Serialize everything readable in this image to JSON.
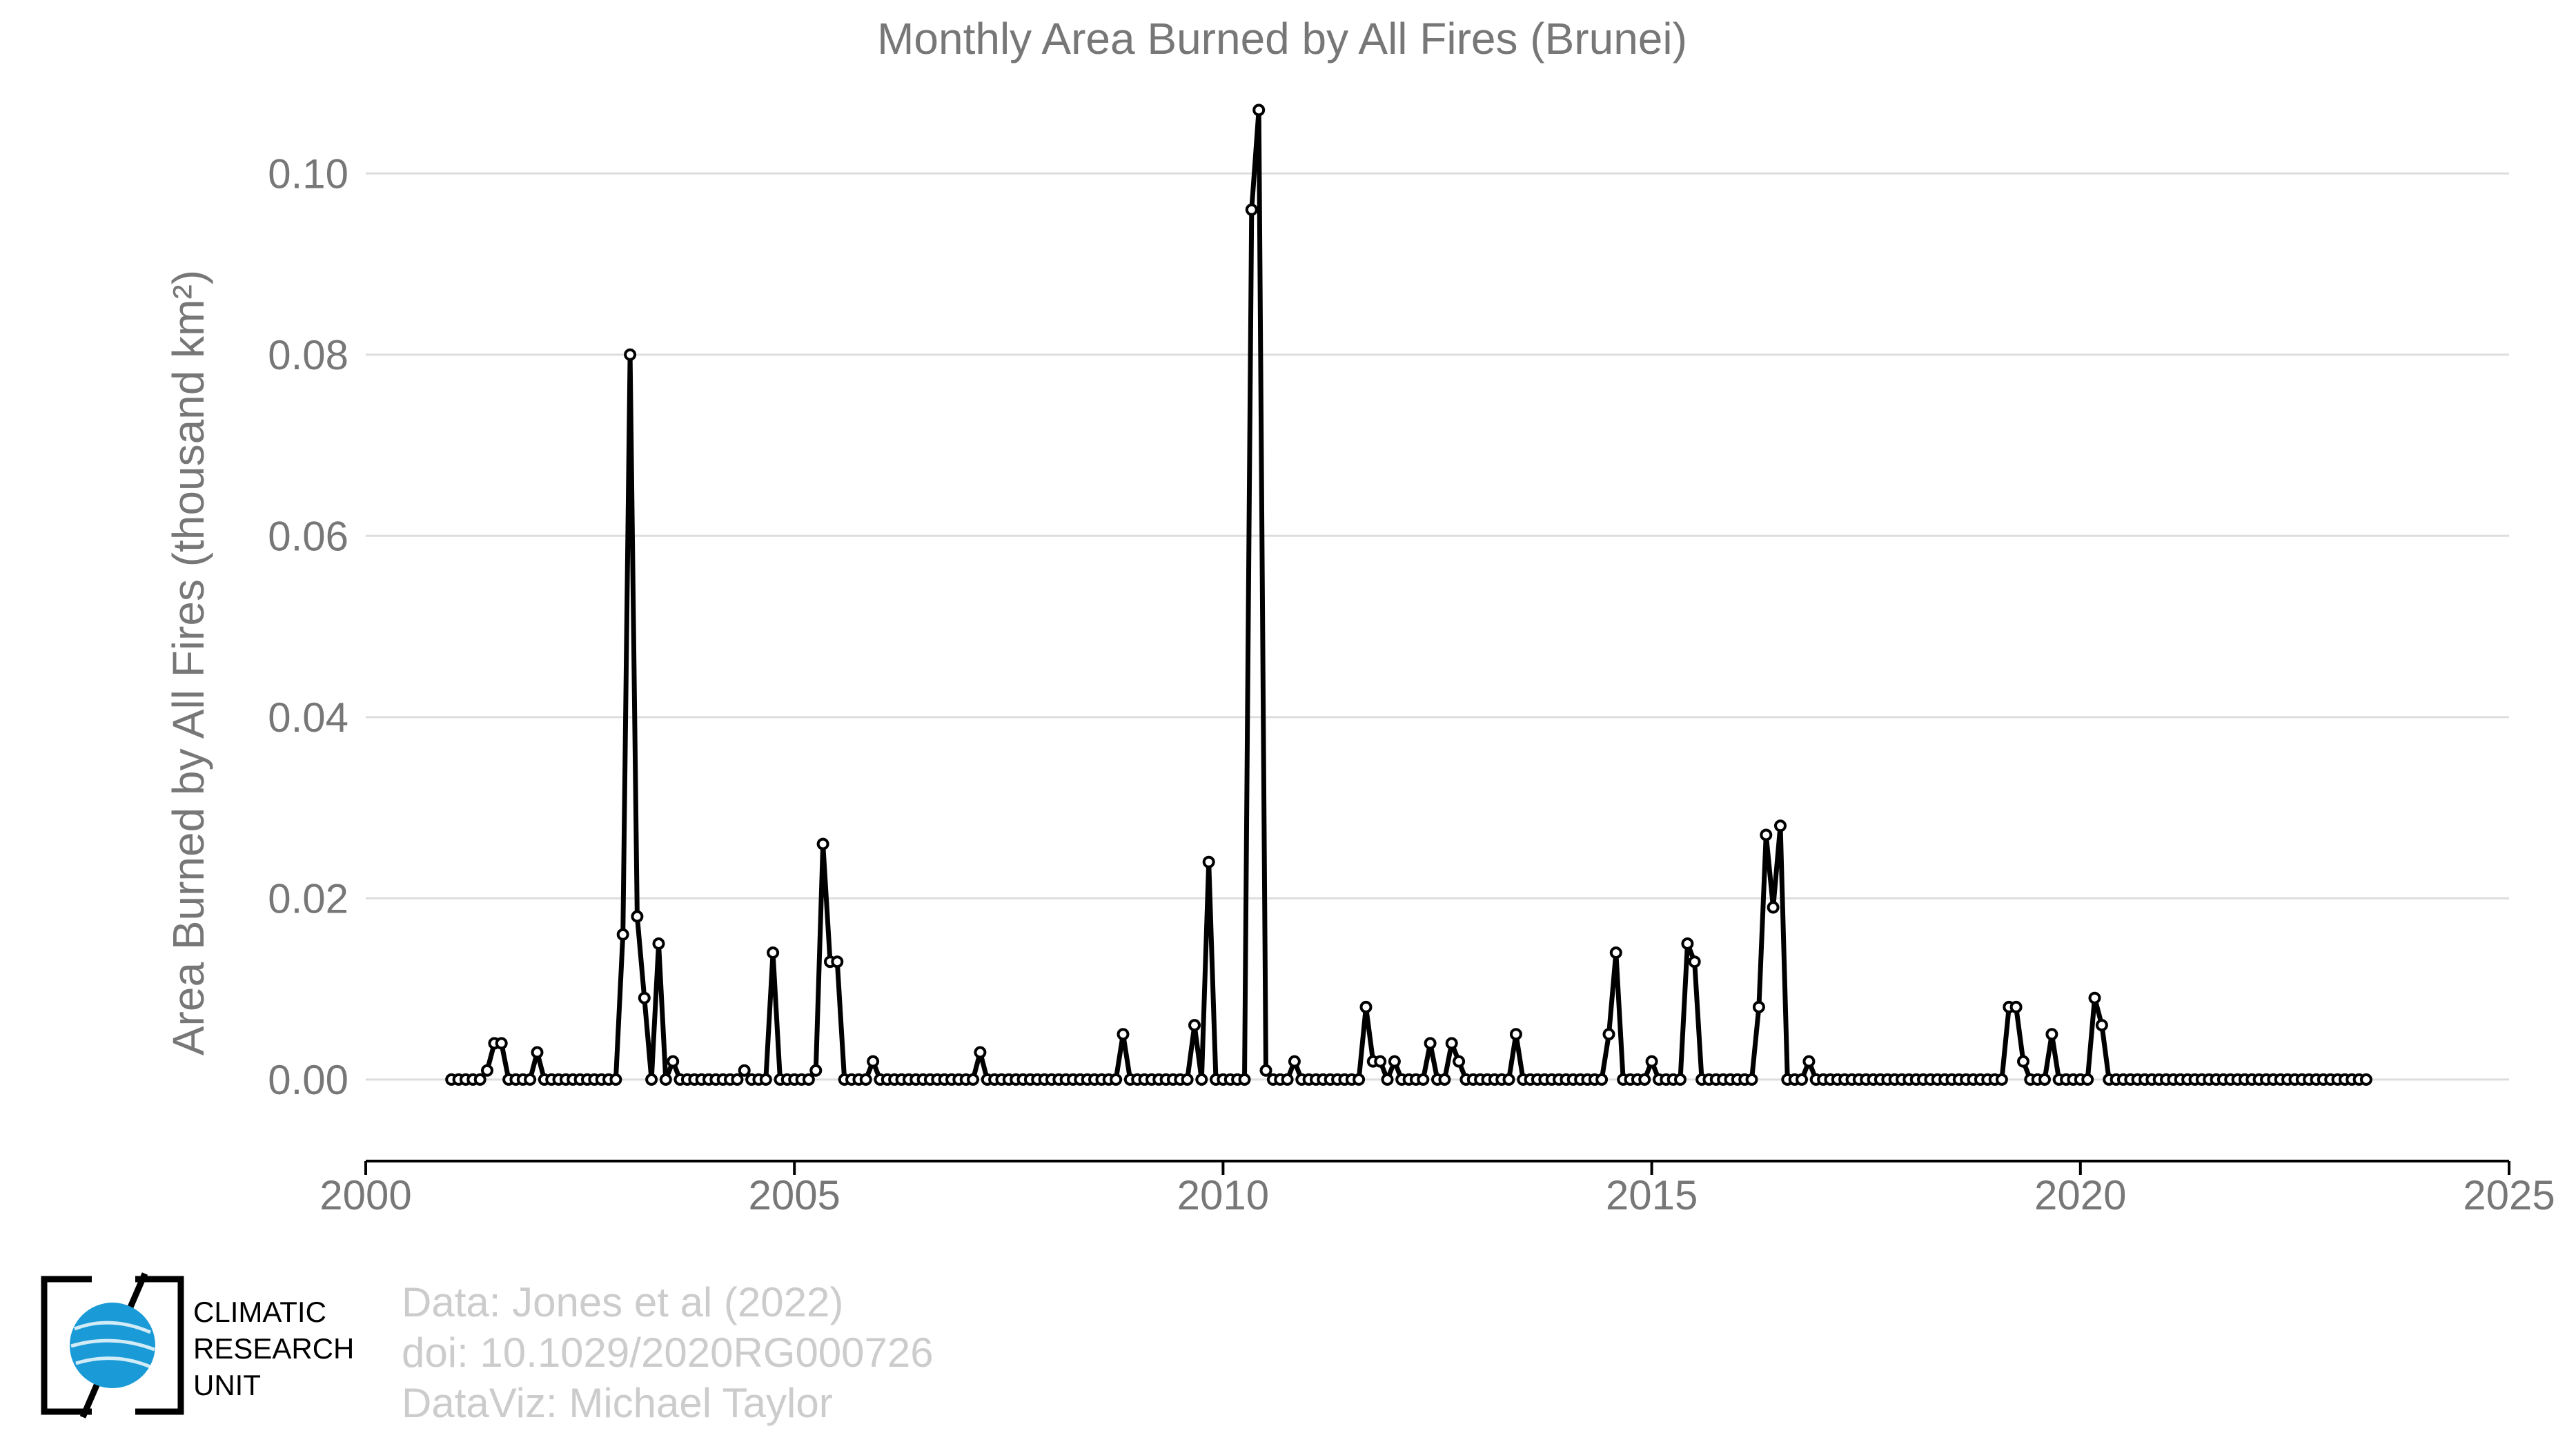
{
  "chart_data": {
    "type": "line",
    "title": "Monthly Area Burned by All Fires (Brunei)",
    "ylabel": "Area Burned by All Fires (thousand km²)",
    "xlabel": "",
    "xlim": [
      2000,
      2025
    ],
    "ylim": [
      -0.009,
      0.11
    ],
    "xticks": [
      2000,
      2005,
      2010,
      2015,
      2020,
      2025
    ],
    "xtick_labels": [
      "2000",
      "2005",
      "2010",
      "2015",
      "2020",
      "2025"
    ],
    "yticks": [
      0.0,
      0.02,
      0.04,
      0.06,
      0.08,
      0.1
    ],
    "ytick_labels": [
      "0.00",
      "0.02",
      "0.04",
      "0.06",
      "0.08",
      "0.10"
    ],
    "grid": "horizontal",
    "start": "2001-01",
    "frequency": "monthly",
    "series": [
      {
        "values": [
          0,
          0,
          0,
          0,
          0,
          0.001,
          0.004,
          0.004,
          0,
          0,
          0,
          0,
          0.003,
          0,
          0,
          0,
          0,
          0,
          0,
          0,
          0,
          0,
          0,
          0,
          0.016,
          0.08,
          0.018,
          0.009,
          0,
          0.015,
          0,
          0.002,
          0,
          0,
          0,
          0,
          0,
          0,
          0,
          0,
          0,
          0.001,
          0,
          0,
          0,
          0.014,
          0,
          0,
          0,
          0,
          0,
          0.001,
          0.026,
          0.013,
          0.013,
          0,
          0,
          0,
          0,
          0.002,
          0,
          0,
          0,
          0,
          0,
          0,
          0,
          0,
          0,
          0,
          0,
          0,
          0,
          0,
          0.003,
          0,
          0,
          0,
          0,
          0,
          0,
          0,
          0,
          0,
          0,
          0,
          0,
          0,
          0,
          0,
          0,
          0,
          0,
          0,
          0.005,
          0,
          0,
          0,
          0,
          0,
          0,
          0,
          0,
          0,
          0.006,
          0,
          0.024,
          0,
          0,
          0,
          0,
          0,
          0.096,
          0.107,
          0.001,
          0,
          0,
          0,
          0.002,
          0,
          0,
          0,
          0,
          0,
          0,
          0,
          0,
          0,
          0.008,
          0.002,
          0.002,
          0,
          0.002,
          0,
          0,
          0,
          0,
          0.004,
          0,
          0,
          0.004,
          0.002,
          0,
          0,
          0,
          0,
          0,
          0,
          0,
          0.005,
          0,
          0,
          0,
          0,
          0,
          0,
          0,
          0,
          0,
          0,
          0,
          0,
          0.005,
          0.014,
          0,
          0,
          0,
          0,
          0.002,
          0,
          0,
          0,
          0,
          0.015,
          0.013,
          0,
          0,
          0,
          0,
          0,
          0,
          0,
          0,
          0.008,
          0.027,
          0.019,
          0.028,
          0,
          0,
          0,
          0.002,
          0,
          0,
          0,
          0,
          0,
          0,
          0,
          0,
          0,
          0,
          0,
          0,
          0,
          0,
          0,
          0,
          0,
          0,
          0,
          0,
          0,
          0,
          0,
          0,
          0,
          0,
          0,
          0.008,
          0.008,
          0.002,
          0,
          0,
          0,
          0.005,
          0,
          0,
          0,
          0,
          0,
          0.009,
          0.006,
          0,
          0,
          0,
          0,
          0,
          0,
          0,
          0,
          0,
          0,
          0,
          0,
          0,
          0,
          0,
          0,
          0,
          0,
          0,
          0,
          0,
          0,
          0,
          0,
          0,
          0,
          0,
          0,
          0,
          0,
          0,
          0,
          0,
          0,
          0,
          0,
          0
        ]
      }
    ]
  },
  "credits": {
    "line1": "Data: Jones et al (2022)",
    "line2": "doi: 10.1029/2020RG000726",
    "line3": "DataViz: Michael Taylor"
  },
  "logo": {
    "line1": "CLIMATIC",
    "line2": "RESEARCH",
    "line3": "UNIT",
    "accent": "#1a9ad6"
  }
}
